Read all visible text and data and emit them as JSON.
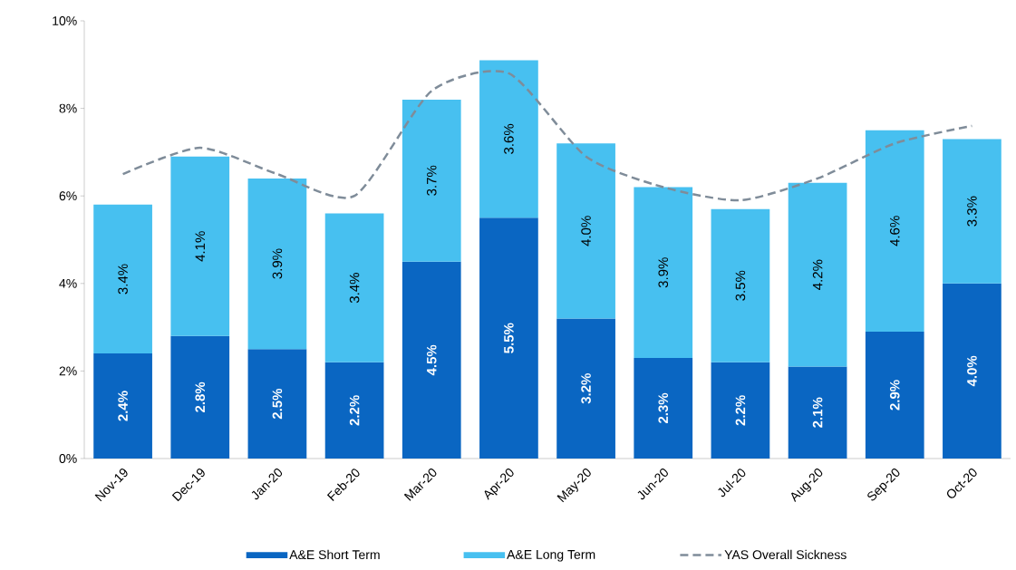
{
  "chart_data": {
    "type": "bar",
    "stacked": true,
    "legend": "bottom",
    "grid": false,
    "categories": [
      "Nov-19",
      "Dec-19",
      "Jan-20",
      "Feb-20",
      "Mar-20",
      "Apr-20",
      "May-20",
      "Jun-20",
      "Jul-20",
      "Aug-20",
      "Sep-20",
      "Oct-20"
    ],
    "ylim": [
      0,
      10
    ],
    "yticks": [
      {
        "value": 0,
        "label": "0%"
      },
      {
        "value": 2,
        "label": "2%"
      },
      {
        "value": 4,
        "label": "4%"
      },
      {
        "value": 6,
        "label": "6%"
      },
      {
        "value": 8,
        "label": "8%"
      },
      {
        "value": 10,
        "label": "10%"
      }
    ],
    "series": [
      {
        "name": "A&E Short Term",
        "color": "#0a66c2",
        "values": [
          2.4,
          2.8,
          2.5,
          2.2,
          4.5,
          5.5,
          3.2,
          2.3,
          2.2,
          2.1,
          2.9,
          4.0
        ],
        "value_labels": [
          "2.4%",
          "2.8%",
          "2.5%",
          "2.2%",
          "4.5%",
          "5.5%",
          "3.2%",
          "2.3%",
          "2.2%",
          "2.1%",
          "2.9%",
          "4.0%"
        ]
      },
      {
        "name": "A&E Long Term",
        "color": "#47c0f0",
        "values": [
          3.4,
          4.1,
          3.9,
          3.4,
          3.7,
          3.6,
          4.0,
          3.9,
          3.5,
          4.2,
          4.6,
          3.3
        ],
        "value_labels": [
          "3.4%",
          "4.1%",
          "3.9%",
          "3.4%",
          "3.7%",
          "3.6%",
          "4.0%",
          "3.9%",
          "3.5%",
          "4.2%",
          "4.6%",
          "3.3%"
        ]
      },
      {
        "name": "YAS Overall Sickness",
        "type": "line",
        "line_style": "dashed",
        "color": "#7f8c99",
        "values": [
          6.5,
          7.1,
          6.5,
          6.0,
          8.4,
          8.8,
          6.9,
          6.2,
          5.9,
          6.4,
          7.2,
          7.6
        ]
      }
    ]
  }
}
